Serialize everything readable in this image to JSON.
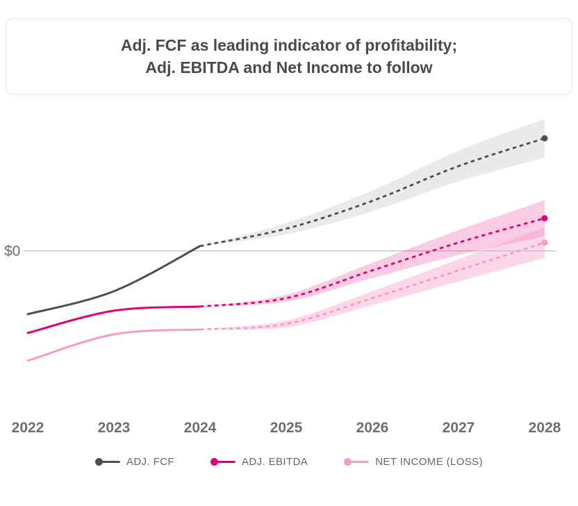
{
  "title_card": {
    "line1": "Adj. FCF as leading indicator of profitability;",
    "line2": "Adj. EBITDA and Net Income to follow"
  },
  "colors": {
    "title_text": "#4A4A4A",
    "axis_text": "#6E6E6E",
    "zero_line": "#C9C9C9",
    "legend_text": "#666666",
    "card_border": "#E5E5E5",
    "adj_fcf": "#4D4D4D",
    "adj_ebitda": "#E20074",
    "net_income": "#F59BC8"
  },
  "chart_data": {
    "type": "line",
    "title": "Adj. FCF as leading indicator of profitability; Adj. EBITDA and Net Income to follow",
    "x": [
      2022,
      2023,
      2024,
      2025,
      2026,
      2027,
      2028
    ],
    "x_tick_labels": [
      "2022",
      "2023",
      "2024",
      "2025",
      "2026",
      "2027",
      "2028"
    ],
    "y_axis": {
      "zero_label": "$0",
      "ylim": [
        -290,
        215
      ],
      "gridlines": "zero-line-only",
      "numeric_scale_shown": false
    },
    "forecast_start_x": 2024,
    "line_style": {
      "historical": "solid",
      "forecast": "dashed",
      "forecast_uncertainty_band": true,
      "end_marker": "dot"
    },
    "legend_position": "bottom",
    "series": [
      {
        "name": "ADJ. FCF",
        "color": "#4D4D4D",
        "band_color": "#D9D9D9",
        "band_opacity": 0.55,
        "values": [
          -91,
          -58,
          7,
          32,
          72,
          122,
          162
        ],
        "band_half_width": [
          0,
          0,
          0,
          8,
          15,
          22,
          28
        ]
      },
      {
        "name": "ADJ. EBITDA",
        "color": "#E20074",
        "band_color": "#E20074",
        "band_opacity": 0.2,
        "values": [
          -118,
          -86,
          -80,
          -68,
          -28,
          12,
          47
        ],
        "band_half_width": [
          0,
          0,
          0,
          5,
          11,
          18,
          26
        ]
      },
      {
        "name": "NET INCOME (LOSS)",
        "color": "#F59BC8",
        "band_color": "#F59BC8",
        "band_opacity": 0.4,
        "values": [
          -158,
          -120,
          -113,
          -105,
          -68,
          -28,
          12
        ],
        "band_half_width": [
          0,
          0,
          0,
          5,
          10,
          16,
          22
        ]
      }
    ]
  }
}
